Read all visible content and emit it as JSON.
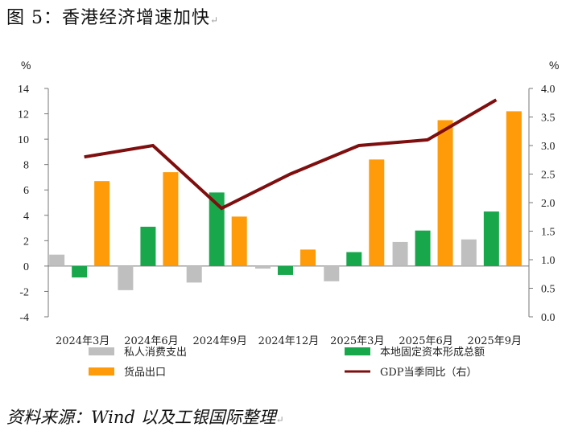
{
  "title": "图 5：香港经济增速加快",
  "return_mark": "↵",
  "source": "资料来源：Wind 以及工银国际整理",
  "chart_data": {
    "type": "bar+line",
    "categories": [
      "2024年3月",
      "2024年6月",
      "2024年9月",
      "2024年12月",
      "2025年3月",
      "2025年6月",
      "2025年9月"
    ],
    "left_axis": {
      "unit": "%",
      "range": [
        -4,
        14
      ],
      "ticks": [
        -4,
        -2,
        0,
        2,
        4,
        6,
        8,
        10,
        12,
        14
      ]
    },
    "right_axis": {
      "unit": "%",
      "range": [
        0.0,
        4.0
      ],
      "ticks": [
        "0.0",
        "0.5",
        "1.0",
        "1.5",
        "2.0",
        "2.5",
        "3.0",
        "3.5",
        "4.0"
      ]
    },
    "series": [
      {
        "name": "私人消费支出",
        "type": "bar",
        "axis": "left",
        "color": "#bfbfbf",
        "values": [
          0.9,
          -1.9,
          -1.3,
          -0.2,
          -1.2,
          1.9,
          2.1
        ]
      },
      {
        "name": "本地固定资本形成总额",
        "type": "bar",
        "axis": "left",
        "color": "#19a74c",
        "values": [
          -0.9,
          3.1,
          5.8,
          -0.7,
          1.1,
          2.8,
          4.3
        ]
      },
      {
        "name": "货品出口",
        "type": "bar",
        "axis": "left",
        "color": "#ff9b08",
        "values": [
          6.7,
          7.4,
          3.9,
          1.3,
          8.4,
          11.5,
          12.2
        ]
      },
      {
        "name": "GDP当季同比（右）",
        "type": "line",
        "axis": "right",
        "color": "#7f0e0e",
        "values": [
          2.8,
          3.0,
          1.9,
          2.5,
          3.0,
          3.1,
          3.8
        ]
      }
    ],
    "legend_position": "bottom"
  }
}
